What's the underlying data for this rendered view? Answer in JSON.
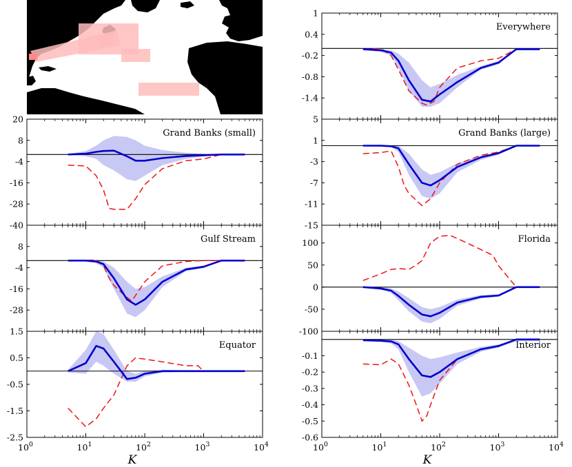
{
  "figure": {
    "xlabel": "K",
    "x_ticks": [
      1,
      10,
      100,
      1000,
      10000
    ],
    "x_tick_labels": [
      {
        "base": "10",
        "exp": "0"
      },
      {
        "base": "10",
        "exp": "1"
      },
      {
        "base": "10",
        "exp": "2"
      },
      {
        "base": "10",
        "exp": "3"
      },
      {
        "base": "10",
        "exp": "4"
      }
    ]
  },
  "colors": {
    "mean_line": "#0000cc",
    "band": "#c8c8f5",
    "dashed": "#ee1111",
    "zero_line": "#000000",
    "map_land": "#000000",
    "map_region": "#ffbcbc"
  },
  "map": {
    "description_regions": 5
  },
  "chart_data": [
    {
      "type": "line",
      "title": "Everywhere",
      "xscale": "log",
      "xlim": [
        1,
        10000
      ],
      "ylim": [
        -2.0,
        1.0
      ],
      "yticks": [
        1,
        0.4,
        -0.2,
        -0.8,
        -1.4,
        -2.0
      ],
      "ytick_labels": [
        "1",
        "0.4",
        "-0.2",
        "-0.8",
        "-1.4",
        ""
      ],
      "reference_line": 0,
      "series": [
        {
          "name": "mean",
          "style": "solid",
          "x": [
            5,
            10,
            15,
            20,
            30,
            50,
            70,
            100,
            200,
            500,
            1000,
            2000,
            5000
          ],
          "y": [
            -0.02,
            -0.05,
            -0.12,
            -0.35,
            -0.9,
            -1.45,
            -1.5,
            -1.3,
            -0.95,
            -0.55,
            -0.4,
            -0.02,
            -0.02
          ]
        },
        {
          "name": "band_upper",
          "x": [
            5,
            10,
            15,
            20,
            30,
            50,
            70,
            100,
            200,
            500,
            1000,
            2000,
            5000
          ],
          "y": [
            0,
            -0.02,
            -0.05,
            -0.15,
            -0.4,
            -0.9,
            -1.1,
            -1.0,
            -0.75,
            -0.5,
            -0.35,
            -0.01,
            -0.01
          ]
        },
        {
          "name": "band_lower",
          "x": [
            5,
            10,
            15,
            20,
            30,
            50,
            70,
            100,
            200,
            500,
            1000,
            2000,
            5000
          ],
          "y": [
            -0.05,
            -0.1,
            -0.2,
            -0.55,
            -1.2,
            -1.65,
            -1.65,
            -1.55,
            -1.1,
            -0.6,
            -0.45,
            -0.03,
            -0.03
          ]
        },
        {
          "name": "dashed",
          "style": "dashed",
          "x": [
            5,
            10,
            15,
            20,
            30,
            50,
            60,
            80,
            100,
            200,
            500,
            1000,
            2000,
            5000
          ],
          "y": [
            -0.02,
            0,
            -0.2,
            -0.6,
            -1.2,
            -1.55,
            -1.6,
            -1.5,
            -1.1,
            -0.55,
            -0.35,
            -0.28,
            -0.02,
            -0.02
          ]
        }
      ]
    },
    {
      "type": "line",
      "title": "Grand Banks (small)",
      "xscale": "log",
      "xlim": [
        1,
        10000
      ],
      "ylim": [
        -40,
        20
      ],
      "yticks": [
        20,
        8,
        -4,
        -16,
        -28,
        -40
      ],
      "ytick_labels": [
        "20",
        "8",
        "-4",
        "-16",
        "-28",
        "-40"
      ],
      "reference_line": 0,
      "series": [
        {
          "name": "mean",
          "style": "solid",
          "x": [
            5,
            10,
            15,
            20,
            30,
            50,
            70,
            100,
            200,
            500,
            1000,
            2000,
            5000
          ],
          "y": [
            0,
            0.5,
            1.5,
            2,
            2.2,
            -1,
            -3.5,
            -3.5,
            -2,
            -0.8,
            -0.4,
            0,
            0
          ]
        },
        {
          "name": "band_upper",
          "x": [
            5,
            10,
            15,
            20,
            30,
            50,
            70,
            100,
            200,
            500,
            1000,
            2000,
            5000
          ],
          "y": [
            0.3,
            2,
            5,
            8,
            10.5,
            10,
            8,
            5,
            2.5,
            1,
            0.4,
            0.1,
            0.1
          ]
        },
        {
          "name": "band_lower",
          "x": [
            5,
            10,
            15,
            20,
            30,
            50,
            70,
            100,
            200,
            500,
            1000,
            2000,
            5000
          ],
          "y": [
            -0.3,
            -1,
            -2.5,
            -6,
            -9,
            -14,
            -15,
            -12,
            -6,
            -2.5,
            -1,
            -0.1,
            -0.1
          ]
        },
        {
          "name": "dashed",
          "style": "dashed",
          "x": [
            5,
            10,
            15,
            20,
            25,
            30,
            50,
            70,
            100,
            200,
            500,
            1000,
            2000,
            5000
          ],
          "y": [
            -6,
            -6.5,
            -12,
            -20,
            -30.5,
            -31,
            -31,
            -25,
            -17,
            -8,
            -3.5,
            -2.5,
            0,
            0
          ]
        }
      ]
    },
    {
      "type": "line",
      "title": "Grand Banks (large)",
      "xscale": "log",
      "xlim": [
        1,
        10000
      ],
      "ylim": [
        -15,
        5
      ],
      "yticks": [
        5,
        1,
        -3,
        -7,
        -11,
        -15
      ],
      "ytick_labels": [
        "5",
        "1",
        "-3",
        "-7",
        "-11",
        "-15"
      ],
      "reference_line": 0,
      "series": [
        {
          "name": "mean",
          "style": "solid",
          "x": [
            5,
            10,
            15,
            20,
            30,
            50,
            70,
            100,
            200,
            500,
            1000,
            2000,
            5000
          ],
          "y": [
            0,
            0,
            -0.1,
            -0.5,
            -3.5,
            -7,
            -7.5,
            -6.5,
            -4,
            -2.2,
            -1.4,
            0,
            0
          ]
        },
        {
          "name": "band_upper",
          "x": [
            5,
            10,
            15,
            20,
            30,
            50,
            70,
            100,
            200,
            500,
            1000,
            2000,
            5000
          ],
          "y": [
            0.1,
            0.1,
            0.1,
            0,
            -1.5,
            -4.5,
            -5.5,
            -5,
            -3.3,
            -1.9,
            -1.2,
            0,
            0
          ]
        },
        {
          "name": "band_lower",
          "x": [
            5,
            10,
            15,
            20,
            30,
            50,
            70,
            100,
            200,
            500,
            1000,
            2000,
            5000
          ],
          "y": [
            -0.1,
            -0.2,
            -0.3,
            -1.2,
            -5.5,
            -9.5,
            -10,
            -9,
            -5,
            -2.7,
            -1.7,
            -0.1,
            -0.1
          ]
        },
        {
          "name": "dashed",
          "style": "dashed",
          "x": [
            5,
            10,
            15,
            20,
            25,
            30,
            50,
            70,
            100,
            200,
            500,
            1000,
            2000,
            5000
          ],
          "y": [
            -1.5,
            -1.3,
            -1,
            -4,
            -7.5,
            -9,
            -11.3,
            -10,
            -7,
            -3.5,
            -1.8,
            -1.2,
            0,
            0
          ]
        }
      ]
    },
    {
      "type": "line",
      "title": "Gulf Stream",
      "xscale": "log",
      "xlim": [
        1,
        10000
      ],
      "ylim": [
        -40,
        20
      ],
      "yticks": [
        20,
        8,
        -4,
        -16,
        -28,
        -40
      ],
      "ytick_labels": [
        "",
        "8",
        "-4",
        "-16",
        "-28",
        ""
      ],
      "reference_line": 0,
      "series": [
        {
          "name": "mean",
          "style": "solid",
          "x": [
            5,
            10,
            15,
            20,
            30,
            50,
            70,
            100,
            200,
            500,
            1000,
            2000,
            5000
          ],
          "y": [
            0,
            0,
            -0.5,
            -2,
            -10,
            -22,
            -25,
            -22,
            -12,
            -5,
            -3.5,
            0,
            0
          ]
        },
        {
          "name": "band_upper",
          "x": [
            5,
            10,
            15,
            20,
            30,
            50,
            70,
            100,
            200,
            500,
            1000,
            2000,
            5000
          ],
          "y": [
            0.3,
            0.3,
            0,
            -0.5,
            -4,
            -12,
            -16,
            -15,
            -9,
            -4,
            -2.8,
            0,
            0
          ]
        },
        {
          "name": "band_lower",
          "x": [
            5,
            10,
            15,
            20,
            30,
            50,
            70,
            100,
            200,
            500,
            1000,
            2000,
            5000
          ],
          "y": [
            -0.3,
            -0.5,
            -1.5,
            -4,
            -16,
            -30,
            -32,
            -28,
            -15,
            -6,
            -4.2,
            -0.1,
            -0.1
          ]
        },
        {
          "name": "dashed",
          "style": "dashed",
          "x": [
            5,
            10,
            15,
            20,
            25,
            30,
            40,
            60,
            100,
            200,
            500,
            1000,
            2000,
            5000
          ],
          "y": [
            0,
            0,
            0.5,
            -3,
            -10,
            -14,
            -18,
            -23,
            -12,
            -3,
            -0.5,
            0,
            0,
            0
          ]
        }
      ]
    },
    {
      "type": "line",
      "title": "Florida",
      "xscale": "log",
      "xlim": [
        1,
        10000
      ],
      "ylim": [
        -100,
        140
      ],
      "yticks": [
        100,
        50,
        0,
        -50,
        -100
      ],
      "ytick_labels": [
        "100",
        "50",
        "0",
        "-50",
        "-100"
      ],
      "reference_line": 0,
      "series": [
        {
          "name": "mean",
          "style": "solid",
          "x": [
            5,
            10,
            15,
            20,
            30,
            50,
            70,
            100,
            200,
            500,
            1000,
            2000,
            5000
          ],
          "y": [
            0,
            -3,
            -8,
            -20,
            -40,
            -62,
            -66,
            -58,
            -35,
            -22,
            -19,
            0,
            0
          ]
        },
        {
          "name": "band_upper",
          "x": [
            5,
            10,
            15,
            20,
            30,
            50,
            70,
            100,
            200,
            500,
            1000,
            2000,
            5000
          ],
          "y": [
            1,
            0,
            -3,
            -10,
            -25,
            -45,
            -50,
            -45,
            -28,
            -18,
            -16,
            0,
            0
          ]
        },
        {
          "name": "band_lower",
          "x": [
            5,
            10,
            15,
            20,
            30,
            50,
            70,
            100,
            200,
            500,
            1000,
            2000,
            5000
          ],
          "y": [
            -1,
            -6,
            -13,
            -30,
            -55,
            -78,
            -82,
            -72,
            -42,
            -26,
            -22,
            -1,
            -1
          ]
        },
        {
          "name": "dashed",
          "style": "dashed",
          "x": [
            5,
            10,
            15,
            20,
            30,
            40,
            50,
            70,
            100,
            150,
            200,
            500,
            800,
            1000,
            2000,
            5000
          ],
          "y": [
            15,
            30,
            40,
            42,
            40,
            50,
            60,
            100,
            115,
            117,
            110,
            85,
            72,
            48,
            0,
            0
          ]
        }
      ]
    },
    {
      "type": "line",
      "title": "Equator",
      "xscale": "log",
      "xlim": [
        1,
        10000
      ],
      "ylim": [
        -2.5,
        1.5
      ],
      "yticks": [
        1.5,
        0.5,
        -0.5,
        -1.5,
        -2.5
      ],
      "ytick_labels": [
        "1.5",
        "0.5",
        "-0.5",
        "-1.5",
        "-2.5"
      ],
      "reference_line": 0,
      "series": [
        {
          "name": "mean",
          "style": "solid",
          "x": [
            5,
            10,
            15,
            20,
            30,
            50,
            70,
            100,
            200,
            500,
            1000,
            2000,
            5000
          ],
          "y": [
            0,
            0.3,
            0.95,
            0.85,
            0.35,
            -0.3,
            -0.25,
            -0.1,
            0,
            0,
            0,
            0,
            0
          ]
        },
        {
          "name": "band_upper",
          "x": [
            5,
            10,
            15,
            20,
            30,
            50,
            70,
            100,
            200,
            500,
            1000,
            2000,
            5000
          ],
          "y": [
            0.05,
            0.8,
            1.5,
            1.4,
            0.8,
            0,
            -0.1,
            0,
            0.05,
            0.03,
            0.03,
            0.02,
            0.02
          ]
        },
        {
          "name": "band_lower",
          "x": [
            5,
            10,
            15,
            20,
            30,
            50,
            70,
            100,
            200,
            500,
            1000,
            2000,
            5000
          ],
          "y": [
            -0.05,
            -0.1,
            0.35,
            0.2,
            -0.1,
            -0.4,
            -0.4,
            -0.2,
            -0.05,
            -0.03,
            -0.03,
            -0.02,
            -0.02
          ]
        },
        {
          "name": "dashed",
          "style": "dashed",
          "x": [
            5,
            10,
            15,
            20,
            30,
            50,
            70,
            100,
            200,
            500,
            800,
            1000,
            2000,
            5000
          ],
          "y": [
            -1.4,
            -2.1,
            -1.8,
            -1.4,
            -0.9,
            0.2,
            0.5,
            0.45,
            0.35,
            0.2,
            0.2,
            0,
            0,
            0
          ]
        }
      ]
    },
    {
      "type": "line",
      "title": "Interior",
      "xscale": "log",
      "xlim": [
        1,
        10000
      ],
      "ylim": [
        -0.6,
        0.05
      ],
      "yticks": [
        -0.1,
        -0.2,
        -0.3,
        -0.4,
        -0.5,
        -0.6
      ],
      "ytick_labels": [
        "-0.1",
        "-0.2",
        "-0.3",
        "-0.4",
        "-0.5",
        "-0.6"
      ],
      "reference_line": 0,
      "series": [
        {
          "name": "mean",
          "style": "solid",
          "x": [
            5,
            10,
            15,
            20,
            30,
            50,
            70,
            100,
            200,
            500,
            1000,
            2000,
            5000
          ],
          "y": [
            -0.005,
            -0.008,
            -0.012,
            -0.03,
            -0.12,
            -0.22,
            -0.23,
            -0.2,
            -0.12,
            -0.06,
            -0.04,
            0,
            0
          ]
        },
        {
          "name": "band_upper",
          "x": [
            5,
            10,
            15,
            20,
            30,
            50,
            70,
            100,
            200,
            500,
            1000,
            2000,
            5000
          ],
          "y": [
            0,
            0,
            0,
            -0.01,
            -0.05,
            -0.1,
            -0.12,
            -0.11,
            -0.08,
            -0.045,
            -0.03,
            0,
            0
          ]
        },
        {
          "name": "band_lower",
          "x": [
            5,
            10,
            15,
            20,
            30,
            50,
            70,
            100,
            200,
            500,
            1000,
            2000,
            5000
          ],
          "y": [
            -0.01,
            -0.015,
            -0.025,
            -0.06,
            -0.2,
            -0.35,
            -0.33,
            -0.27,
            -0.15,
            -0.075,
            -0.05,
            -0.01,
            -0.01
          ]
        },
        {
          "name": "dashed",
          "style": "dashed",
          "x": [
            5,
            10,
            15,
            20,
            30,
            40,
            50,
            60,
            70,
            100,
            200,
            500,
            1000,
            2000,
            5000
          ],
          "y": [
            -0.15,
            -0.155,
            -0.12,
            -0.15,
            -0.28,
            -0.4,
            -0.5,
            -0.47,
            -0.4,
            -0.25,
            -0.12,
            -0.06,
            -0.04,
            0,
            0
          ]
        }
      ]
    }
  ]
}
